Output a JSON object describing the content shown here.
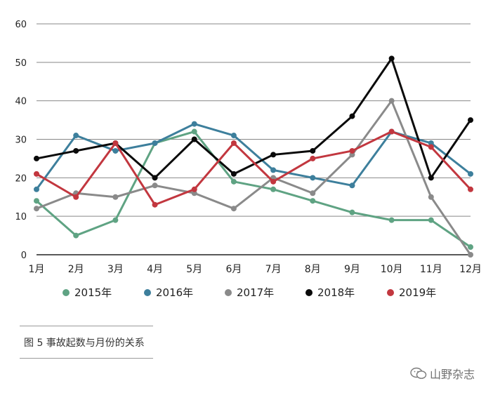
{
  "chart_data": {
    "type": "line",
    "title": "",
    "xlabel": "",
    "ylabel": "",
    "ylim": [
      0,
      60
    ],
    "yticks": [
      "0",
      "10",
      "20",
      "30",
      "40",
      "50",
      "60"
    ],
    "grid": true,
    "legend_position": "bottom",
    "categories": [
      "1月",
      "2月",
      "3月",
      "4月",
      "5月",
      "6月",
      "7月",
      "8月",
      "9月",
      "10月",
      "11月",
      "12月"
    ],
    "series": [
      {
        "name": "2015年",
        "color": "#5fa383",
        "values": [
          14,
          5,
          9,
          29,
          32,
          19,
          17,
          14,
          11,
          9,
          9,
          2
        ]
      },
      {
        "name": "2016年",
        "color": "#3d7f9c",
        "values": [
          17,
          31,
          27,
          29,
          34,
          31,
          22,
          20,
          18,
          32,
          29,
          21
        ]
      },
      {
        "name": "2017年",
        "color": "#8a8a8a",
        "values": [
          12,
          16,
          15,
          18,
          16,
          12,
          20,
          16,
          26,
          40,
          15,
          0
        ]
      },
      {
        "name": "2018年",
        "color": "#0a0a0a",
        "values": [
          25,
          27,
          29,
          20,
          30,
          21,
          26,
          27,
          36,
          51,
          20,
          35
        ]
      },
      {
        "name": "2019年",
        "color": "#c2373f",
        "values": [
          21,
          15,
          29,
          13,
          17,
          29,
          19,
          25,
          27,
          32,
          28,
          17
        ]
      }
    ]
  },
  "caption": {
    "text": "图 5  事故起数与月份的关系"
  },
  "watermark": {
    "icon": "wechat-icon",
    "text": "山野杂志"
  }
}
